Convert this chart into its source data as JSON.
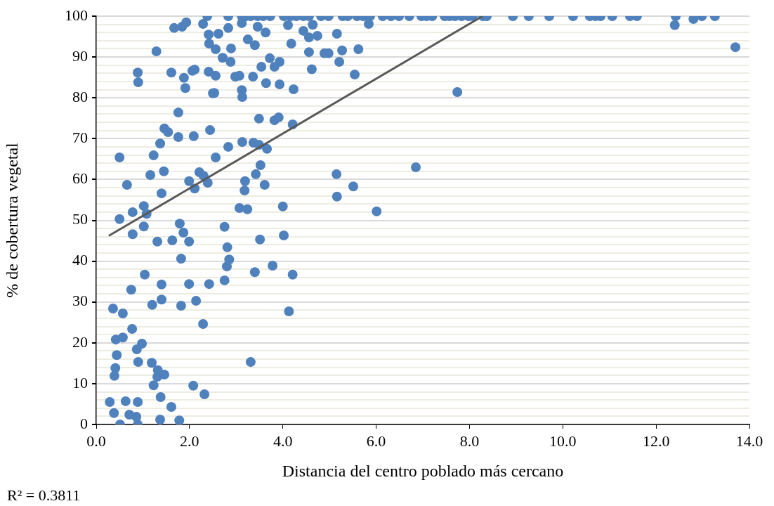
{
  "chart_data": {
    "type": "scatter",
    "xlabel": "Distancia del centro poblado más cercano",
    "ylabel": "% de cobertura vegetal",
    "annotations": [
      "R² = 0.3811"
    ],
    "xlim": [
      0,
      14
    ],
    "xticks": [
      {
        "value": 0,
        "label": "0.0"
      },
      {
        "value": 2,
        "label": "2.0"
      },
      {
        "value": 4,
        "label": "4.0"
      },
      {
        "value": 6,
        "label": "6.0"
      },
      {
        "value": 8,
        "label": "8.0"
      },
      {
        "value": 10,
        "label": "10.0"
      },
      {
        "value": 12,
        "label": "12.0"
      },
      {
        "value": 14,
        "label": "14.0"
      }
    ],
    "ylim": [
      0,
      100
    ],
    "yticks": [
      0,
      {
        "value": 2,
        "label": null
      },
      {
        "value": 4,
        "label": null
      },
      {
        "value": 6,
        "label": null
      },
      {
        "value": 8,
        "label": null
      },
      10,
      {
        "value": 12,
        "label": null
      },
      {
        "value": 14,
        "label": null
      },
      {
        "value": 16,
        "label": null
      },
      {
        "value": 18,
        "label": null
      },
      20,
      {
        "value": 22,
        "label": null
      },
      {
        "value": 24,
        "label": null
      },
      {
        "value": 26,
        "label": null
      },
      {
        "value": 28,
        "label": null
      },
      30,
      {
        "value": 32,
        "label": null
      },
      {
        "value": 34,
        "label": null
      },
      {
        "value": 36,
        "label": null
      },
      {
        "value": 38,
        "label": null
      },
      40,
      {
        "value": 42,
        "label": null
      },
      {
        "value": 44,
        "label": null
      },
      {
        "value": 46,
        "label": null
      },
      {
        "value": 48,
        "label": null
      },
      50,
      {
        "value": 52,
        "label": null
      },
      {
        "value": 54,
        "label": null
      },
      {
        "value": 56,
        "label": null
      },
      {
        "value": 58,
        "label": null
      },
      60,
      {
        "value": 62,
        "label": null
      },
      {
        "value": 64,
        "label": null
      },
      {
        "value": 66,
        "label": null
      },
      {
        "value": 68,
        "label": null
      },
      70,
      {
        "value": 72,
        "label": null
      },
      {
        "value": 74,
        "label": null
      },
      {
        "value": 76,
        "label": null
      },
      {
        "value": 78,
        "label": null
      },
      80,
      {
        "value": 82,
        "label": null
      },
      {
        "value": 84,
        "label": null
      },
      {
        "value": 86,
        "label": null
      },
      {
        "value": 88,
        "label": null
      },
      90,
      {
        "value": 92,
        "label": null
      },
      {
        "value": 94,
        "label": null
      },
      {
        "value": 96,
        "label": null
      },
      {
        "value": 98,
        "label": null
      },
      100
    ],
    "grid": "y",
    "marker": "circle",
    "series": [
      {
        "color": "#4f81bd",
        "x": [
          2.38,
          2.83,
          3.12,
          3.21,
          3.31,
          3.46,
          3.58,
          3.73,
          4.02,
          4.17,
          4.29,
          4.44,
          4.56,
          4.82,
          4.98,
          5.28,
          5.39,
          5.59,
          5.72,
          5.87,
          6.14,
          6.32,
          6.49,
          6.71,
          6.97,
          7.08,
          7.2,
          7.47,
          7.57,
          7.69,
          7.83,
          7.98,
          8.07,
          8.29,
          8.37,
          8.93,
          9.27,
          9.71,
          10.22,
          10.58,
          10.7,
          10.81,
          11.06,
          11.44,
          11.59,
          12.42,
          12.98,
          13.26,
          12.4,
          12.8,
          13.7,
          1.67,
          1.84,
          1.93,
          2.29,
          2.41,
          2.62,
          2.83,
          3.12,
          3.46,
          3.63,
          4.11,
          4.64,
          4.44,
          4.56,
          4.74,
          3.25,
          3.4,
          4.18,
          2.42,
          2.56,
          2.89,
          1.29,
          4.56,
          4.89,
          4.98,
          5.16,
          5.27,
          5.62,
          5.21,
          5.54,
          5.84,
          7.74,
          2.71,
          2.88,
          3.72,
          3.93,
          3.82,
          3.54,
          4.62,
          0.89,
          0.9,
          1.61,
          1.88,
          1.91,
          2.11,
          2.06,
          2.41,
          2.56,
          2.98,
          3.07,
          3.36,
          3.64,
          3.93,
          4.23,
          2.53,
          2.5,
          3.12,
          3.13,
          1.76,
          1.46,
          1.54,
          1.76,
          2.09,
          2.44,
          3.49,
          3.82,
          3.91,
          4.21,
          1.37,
          1.23,
          0.5,
          2.56,
          2.83,
          3.13,
          3.37,
          3.49,
          3.66,
          3.52,
          3.42,
          3.19,
          3.18,
          3.61,
          1.16,
          1.45,
          0.66,
          1.99,
          2.21,
          2.3,
          2.39,
          2.11,
          1.4,
          1.02,
          0.78,
          1.08,
          0.5,
          3.07,
          3.24,
          4.0,
          6.85,
          5.15,
          5.51,
          5.16,
          6.01,
          0.78,
          1.02,
          1.79,
          1.87,
          1.31,
          1.63,
          1.99,
          1.82,
          2.75,
          2.81,
          2.85,
          2.8,
          2.75,
          3.51,
          4.02,
          3.78,
          3.4,
          4.21,
          4.13,
          1.04,
          1.4,
          0.75,
          1.99,
          2.42,
          1.4,
          1.2,
          1.82,
          2.14,
          0.36,
          0.57,
          0.77,
          2.29,
          0.42,
          0.57,
          0.98,
          0.87,
          0.44,
          0.9,
          1.19,
          3.31,
          0.41,
          0.39,
          1.32,
          1.46,
          1.31,
          1.23,
          2.08,
          2.32,
          1.38,
          0.29,
          0.63,
          0.89,
          0.38,
          0.71,
          0.86,
          1.61,
          0.51,
          0.89,
          1.37,
          1.78
        ],
        "values": [
          100,
          100,
          100,
          100,
          100,
          100,
          100,
          100,
          100,
          100,
          100,
          100,
          100,
          100,
          100,
          100,
          100,
          100,
          100,
          100,
          100,
          100,
          100,
          100,
          100,
          100,
          100,
          100,
          100,
          100,
          100,
          100,
          100,
          100,
          100,
          100,
          100,
          100,
          100,
          100,
          100,
          100,
          100,
          100,
          100,
          100,
          100,
          100,
          97.8,
          99.3,
          92.4,
          97.1,
          97.4,
          98.5,
          98.1,
          95.5,
          95.7,
          97.1,
          98.3,
          97.4,
          96.0,
          97.8,
          97.9,
          96.4,
          94.8,
          95.2,
          94.3,
          92.9,
          93.3,
          93.3,
          91.9,
          92.1,
          91.4,
          91.2,
          90.9,
          90.9,
          95.7,
          91.6,
          91.9,
          88.8,
          85.7,
          98.1,
          81.4,
          89.8,
          88.8,
          89.7,
          88.8,
          87.6,
          87.6,
          87.0,
          86.2,
          83.8,
          86.2,
          84.9,
          82.4,
          86.9,
          86.6,
          86.4,
          85.4,
          85.2,
          85.4,
          85.2,
          83.6,
          83.3,
          82.1,
          81.2,
          81.1,
          81.9,
          80.2,
          76.4,
          72.5,
          71.6,
          70.4,
          70.6,
          72.1,
          74.9,
          74.5,
          75.2,
          73.5,
          68.8,
          65.9,
          65.4,
          65.4,
          68.0,
          69.2,
          69.0,
          68.5,
          67.5,
          63.5,
          61.3,
          59.6,
          57.3,
          58.7,
          61.1,
          62.0,
          58.7,
          59.6,
          61.8,
          60.9,
          59.2,
          57.8,
          56.6,
          53.5,
          52.0,
          51.6,
          50.3,
          53.0,
          52.7,
          53.4,
          63.0,
          61.3,
          58.3,
          55.8,
          52.2,
          46.6,
          48.5,
          49.2,
          47.0,
          44.8,
          45.1,
          44.8,
          40.6,
          48.4,
          43.4,
          40.4,
          38.7,
          35.3,
          45.3,
          46.3,
          38.9,
          37.3,
          36.7,
          27.7,
          36.7,
          34.3,
          33.0,
          34.4,
          34.4,
          30.6,
          29.3,
          29.1,
          30.3,
          28.4,
          27.2,
          23.4,
          24.6,
          20.8,
          21.3,
          19.8,
          18.4,
          17.0,
          15.3,
          15.1,
          15.3,
          13.8,
          11.9,
          13.3,
          12.2,
          11.7,
          9.6,
          9.5,
          7.4,
          6.7,
          5.5,
          5.7,
          5.5,
          2.8,
          2.4,
          1.9,
          4.3,
          0,
          0,
          1.2,
          1.0
        ]
      },
      {
        "type": "line",
        "color": "#595959",
        "marker": "none",
        "x": [
          0.27,
          8.28
        ],
        "values": [
          46.2,
          100
        ]
      }
    ]
  }
}
